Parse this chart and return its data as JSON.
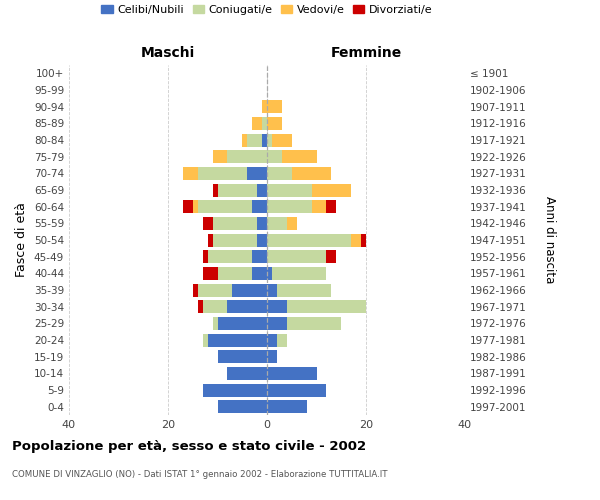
{
  "age_groups": [
    "100+",
    "95-99",
    "90-94",
    "85-89",
    "80-84",
    "75-79",
    "70-74",
    "65-69",
    "60-64",
    "55-59",
    "50-54",
    "45-49",
    "40-44",
    "35-39",
    "30-34",
    "25-29",
    "20-24",
    "15-19",
    "10-14",
    "5-9",
    "0-4"
  ],
  "birth_years": [
    "≤ 1901",
    "1902-1906",
    "1907-1911",
    "1912-1916",
    "1917-1921",
    "1922-1926",
    "1927-1931",
    "1932-1936",
    "1937-1941",
    "1942-1946",
    "1947-1951",
    "1952-1956",
    "1957-1961",
    "1962-1966",
    "1967-1971",
    "1972-1976",
    "1977-1981",
    "1982-1986",
    "1987-1991",
    "1992-1996",
    "1997-2001"
  ],
  "males_celibi": [
    0,
    0,
    0,
    0,
    1,
    0,
    4,
    2,
    3,
    2,
    2,
    3,
    3,
    7,
    8,
    10,
    12,
    10,
    8,
    13,
    10
  ],
  "males_coniugati": [
    0,
    0,
    0,
    1,
    3,
    8,
    10,
    8,
    11,
    9,
    9,
    9,
    7,
    7,
    5,
    1,
    1,
    0,
    0,
    0,
    0
  ],
  "males_vedovi": [
    0,
    0,
    1,
    2,
    1,
    3,
    3,
    0,
    1,
    0,
    0,
    0,
    0,
    0,
    0,
    0,
    0,
    0,
    0,
    0,
    0
  ],
  "males_divorziati": [
    0,
    0,
    0,
    0,
    0,
    0,
    0,
    1,
    2,
    2,
    1,
    1,
    3,
    1,
    1,
    0,
    0,
    0,
    0,
    0,
    0
  ],
  "females_nubili": [
    0,
    0,
    0,
    0,
    0,
    0,
    0,
    0,
    0,
    0,
    0,
    0,
    1,
    2,
    4,
    4,
    2,
    2,
    10,
    12,
    8
  ],
  "females_coniugate": [
    0,
    0,
    0,
    0,
    1,
    3,
    5,
    9,
    9,
    4,
    17,
    12,
    11,
    11,
    16,
    11,
    2,
    0,
    0,
    0,
    0
  ],
  "females_vedove": [
    0,
    0,
    3,
    3,
    4,
    7,
    8,
    8,
    3,
    2,
    2,
    0,
    0,
    0,
    0,
    0,
    0,
    0,
    0,
    0,
    0
  ],
  "females_divorziate": [
    0,
    0,
    0,
    0,
    0,
    0,
    0,
    0,
    2,
    0,
    1,
    2,
    0,
    0,
    0,
    0,
    0,
    0,
    0,
    0,
    0
  ],
  "color_celibi": "#4472c4",
  "color_coniugati": "#c5d9a0",
  "color_vedovi": "#ffc04c",
  "color_divorziati": "#cc0000",
  "legend_labels": [
    "Celibi/Nubili",
    "Coniugati/e",
    "Vedovi/e",
    "Divorziati/e"
  ],
  "title": "Popolazione per età, sesso e stato civile - 2002",
  "subtitle": "COMUNE DI VINZAGLIO (NO) - Dati ISTAT 1° gennaio 2002 - Elaborazione TUTTITALIA.IT",
  "label_maschi": "Maschi",
  "label_femmine": "Femmine",
  "ylabel_left": "Fasce di età",
  "ylabel_right": "Anni di nascita",
  "xlim": 40,
  "bg_color": "#ffffff",
  "grid_color": "#cccccc"
}
